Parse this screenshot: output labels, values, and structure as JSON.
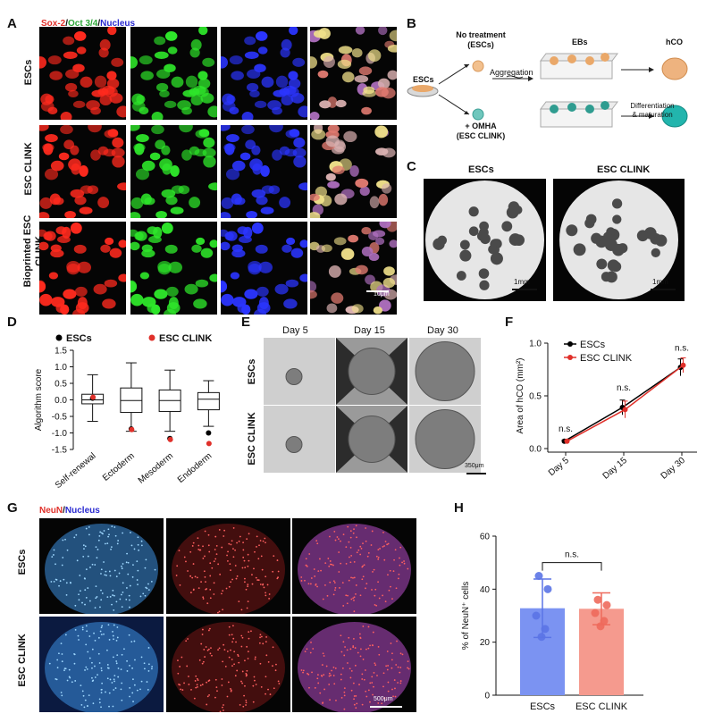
{
  "panels": {
    "a": {
      "letter": "A",
      "title_red": "Sox-2",
      "title_sep1": "/",
      "title_green": "Oct 3/4",
      "title_sep2": "/",
      "title_blue": "Nucleus",
      "rows": [
        "ESCs",
        "ESC CLINK",
        "Bioprinted ESC CLINK"
      ],
      "scalebar": "10μm"
    },
    "b": {
      "letter": "B",
      "esc": "ESCs",
      "no_treat": "No treatment",
      "no_treat_sub": "(ESCs)",
      "omha": "+ OMHA",
      "omha_sub": "(ESC CLINK)",
      "aggregation": "Aggregation",
      "ebs": "EBs",
      "hco": "hCO",
      "diff1": "Differentiation",
      "diff2": "& maturation"
    },
    "c": {
      "letter": "C",
      "left": "ESCs",
      "right": "ESC CLINK",
      "scale": "1mm"
    },
    "d": {
      "letter": "D",
      "legend_a": "ESCs",
      "legend_b": "ESC CLINK",
      "ylabel": "Algorithm score"
    },
    "e": {
      "letter": "E",
      "days": [
        "Day 5",
        "Day 15",
        "Day 30"
      ],
      "rows": [
        "ESCs",
        "ESC CLINK"
      ],
      "scale": "350μm"
    },
    "f": {
      "letter": "F",
      "legend_a": "ESCs",
      "legend_b": "ESC CLINK",
      "ylabel": "Area of hCO (mm²)",
      "ns": "n.s."
    },
    "g": {
      "letter": "G",
      "title_red": "NeuN",
      "title_sep": "/",
      "title_blue": "Nucleus",
      "rows": [
        "ESCs",
        "ESC CLINK"
      ],
      "scale": "500μm"
    },
    "h": {
      "letter": "H",
      "ylabel": "% of NeuN⁺ cells",
      "ns": "n.s."
    }
  },
  "colors": {
    "red": "#e0302a",
    "green": "#3fae3f",
    "blue": "#2b2bd1",
    "black": "#000000",
    "bar_blue": "#7b93f2",
    "bar_red": "#f59a8e"
  },
  "chart_data": [
    {
      "type": "box",
      "panel": "D",
      "categories": [
        "Self-renewal",
        "Ectoderm",
        "Mesoderm",
        "Endoderm"
      ],
      "ylabel": "Algorithm score",
      "ylim": [
        -1.5,
        1.5
      ],
      "yticks": [
        "1.5",
        "1.0",
        "0.5",
        "0.0",
        "-0.5",
        "-1.0",
        "-1.5"
      ],
      "boxes": [
        {
          "min": -0.65,
          "q1": -0.12,
          "median": 0.0,
          "q3": 0.17,
          "max": 0.76
        },
        {
          "min": -0.95,
          "q1": -0.38,
          "median": -0.02,
          "q3": 0.36,
          "max": 1.12
        },
        {
          "min": -0.95,
          "q1": -0.35,
          "median": -0.02,
          "q3": 0.3,
          "max": 0.9
        },
        {
          "min": -0.8,
          "q1": -0.3,
          "median": 0.02,
          "q3": 0.22,
          "max": 0.58
        }
      ],
      "series": [
        {
          "name": "ESCs",
          "values": [
            0.05,
            -0.88,
            -1.17,
            -1.0
          ]
        },
        {
          "name": "ESC CLINK",
          "values": [
            0.08,
            -0.9,
            -1.2,
            -1.32
          ]
        }
      ]
    },
    {
      "type": "line",
      "panel": "F",
      "x": [
        "Day 5",
        "Day 15",
        "Day 30"
      ],
      "ylabel": "Area of hCO (mm²)",
      "ylim": [
        0,
        1.0
      ],
      "yticks": [
        "1.0",
        "0.5",
        "0.0"
      ],
      "series": [
        {
          "name": "ESCs",
          "values": [
            0.07,
            0.39,
            0.77
          ],
          "err": [
            0.01,
            0.07,
            0.08
          ]
        },
        {
          "name": "ESC CLINK",
          "values": [
            0.07,
            0.37,
            0.79
          ],
          "err": [
            0.01,
            0.08,
            0.07
          ]
        }
      ],
      "annotations": [
        "n.s.",
        "n.s.",
        "n.s."
      ]
    },
    {
      "type": "bar",
      "panel": "H",
      "categories": [
        "ESCs",
        "ESC CLINK"
      ],
      "values": [
        32.8,
        32.6
      ],
      "err": [
        11,
        6
      ],
      "ylim": [
        0,
        60
      ],
      "yticks": [
        "60",
        "40",
        "20",
        "0"
      ],
      "ylabel": "% of NeuN⁺ cells",
      "points": [
        [
          45,
          40,
          30,
          25,
          22
        ],
        [
          36,
          34,
          31,
          28,
          26
        ]
      ],
      "annotation": "n.s."
    }
  ]
}
